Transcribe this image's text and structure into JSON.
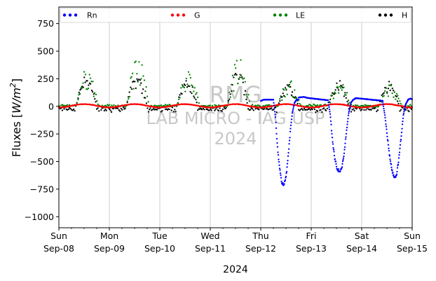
{
  "chart_data": {
    "type": "scatter",
    "xlabel": "2024",
    "ylabel": "Fluxes [W/m²]",
    "ylabel_main": "Fluxes [",
    "ylabel_unit": "W/m",
    "ylabel_exp": "2",
    "ylabel_close": "]",
    "xlim": [
      "2024-09-08",
      "2024-09-15"
    ],
    "ylim": [
      -1100,
      900
    ],
    "yticks": [
      750,
      500,
      250,
      0,
      -250,
      -500,
      -750,
      -1000
    ],
    "ytick_labels": [
      "750",
      "500",
      "250",
      "0",
      "−250",
      "−500",
      "−750",
      "−1000"
    ],
    "xticks": [
      {
        "date": "2024-09-08",
        "day": "Sun",
        "label": "Sep-08"
      },
      {
        "date": "2024-09-09",
        "day": "Mon",
        "label": "Sep-09"
      },
      {
        "date": "2024-09-10",
        "day": "Tue",
        "label": "Sep-10"
      },
      {
        "date": "2024-09-11",
        "day": "Wed",
        "label": "Sep-11"
      },
      {
        "date": "2024-09-12",
        "day": "Thu",
        "label": "Sep-12"
      },
      {
        "date": "2024-09-13",
        "day": "Fri",
        "label": "Sep-13"
      },
      {
        "date": "2024-09-14",
        "day": "Sat",
        "label": "Sep-14"
      },
      {
        "date": "2024-09-15",
        "day": "Sun",
        "label": "Sep-15"
      }
    ],
    "grid": "vertical",
    "legend_position": "top",
    "legend": [
      "Rn",
      "G",
      "LE",
      "H"
    ],
    "watermark": {
      "line1": "RMG",
      "line2": "LAB MICRO - IAG USP",
      "line3": "2024"
    },
    "colors": {
      "Rn": "#0000ff",
      "G": "#ff0000",
      "LE": "#008000",
      "H": "#000000",
      "grid": "#c0c0c0",
      "watermark": "#c8c8c8"
    },
    "series": [
      {
        "name": "Rn",
        "color": "#0000ff",
        "segments": [
          {
            "from": "2024-09-12 00:00",
            "to": "2024-09-12 06:00",
            "values": [
              50,
              60,
              60,
              60,
              60
            ]
          },
          {
            "from": "2024-09-12 06:00",
            "to": "2024-09-12 18:00",
            "values": [
              60,
              -100,
              -380,
              -560,
              -690,
              -710,
              -640,
              -460,
              -230,
              -60,
              30,
              60,
              60
            ]
          },
          {
            "from": "2024-09-12 18:00",
            "to": "2024-09-13 08:00",
            "values": [
              80,
              85,
              75,
              70,
              65,
              60,
              55
            ]
          },
          {
            "from": "2024-09-13 08:00",
            "to": "2024-09-13 21:00",
            "values": [
              55,
              -80,
              -320,
              -480,
              -570,
              -590,
              -560,
              -440,
              -250,
              -70,
              30,
              60,
              70
            ]
          },
          {
            "from": "2024-09-13 21:00",
            "to": "2024-09-14 10:00",
            "values": [
              75,
              70,
              65,
              60,
              55,
              50
            ]
          },
          {
            "from": "2024-09-14 10:00",
            "to": "2024-09-14 22:00",
            "values": [
              40,
              -90,
              -270,
              -450,
              -580,
              -650,
              -620,
              -480,
              -280,
              -80,
              20,
              55
            ]
          },
          {
            "from": "2024-09-14 22:00",
            "to": "2024-09-15 00:00",
            "values": [
              60,
              70,
              65
            ]
          }
        ]
      },
      {
        "name": "G",
        "color": "#ff0000",
        "daily_range": [
          -10,
          20
        ]
      },
      {
        "name": "LE",
        "color": "#008000",
        "daily_peaks": [
          {
            "date": "2024-09-08",
            "max": 350
          },
          {
            "date": "2024-09-09",
            "max": 450
          },
          {
            "date": "2024-09-10",
            "max": 330
          },
          {
            "date": "2024-09-11",
            "max": 440
          },
          {
            "date": "2024-09-12",
            "max": 240
          },
          {
            "date": "2024-09-13",
            "max": 260
          },
          {
            "date": "2024-09-14",
            "max": 210
          }
        ]
      },
      {
        "name": "H",
        "color": "#000000",
        "daily_peaks": [
          {
            "date": "2024-09-08",
            "max": 280
          },
          {
            "date": "2024-09-09",
            "max": 280
          },
          {
            "date": "2024-09-10",
            "max": 260
          },
          {
            "date": "2024-09-11",
            "max": 340
          },
          {
            "date": "2024-09-12",
            "max": 210
          },
          {
            "date": "2024-09-13",
            "max": 240
          },
          {
            "date": "2024-09-14",
            "max": 230
          }
        ]
      }
    ]
  }
}
